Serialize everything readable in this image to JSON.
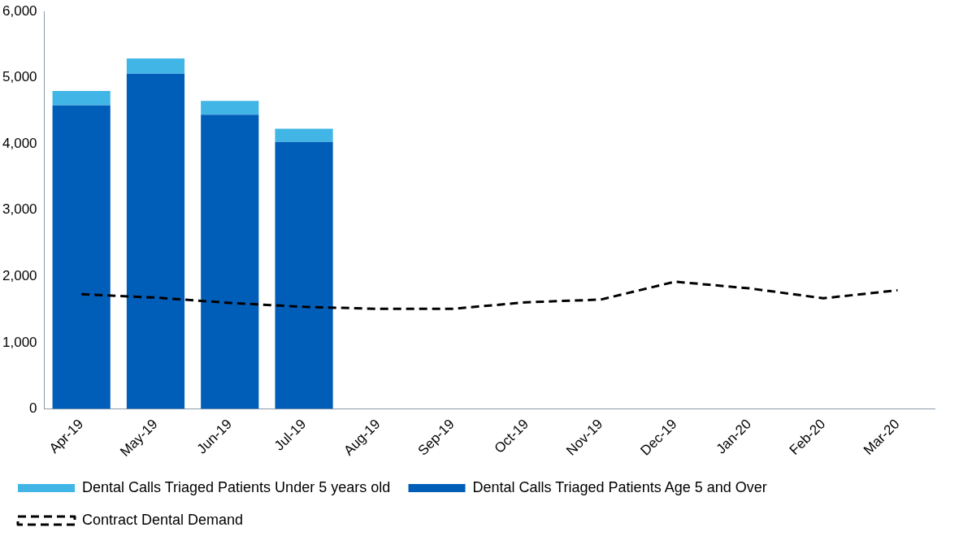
{
  "chart_data": {
    "type": "bar",
    "stacked": true,
    "grid": false,
    "legend": "bottom",
    "categories": [
      "Apr-19",
      "May-19",
      "Jun-19",
      "Jul-19",
      "Aug-19",
      "Sep-19",
      "Oct-19",
      "Nov-19",
      "Dec-19",
      "Jan-20",
      "Feb-20",
      "Mar-20"
    ],
    "ylim": [
      0,
      6000
    ],
    "yticks": [
      0,
      {
        "value": 1000,
        "label": "1,000"
      },
      {
        "value": 2000,
        "label": "2,000"
      },
      {
        "value": 3000,
        "label": "3,000"
      },
      {
        "value": 4000,
        "label": "4,000"
      },
      {
        "value": 5000,
        "label": "5,000"
      },
      {
        "value": 6000,
        "label": "6,000"
      }
    ],
    "series": [
      {
        "name": "Dental Calls Triaged Patients Age 5 and Over",
        "color": "#005eb8",
        "values": [
          4580,
          5060,
          4440,
          4030,
          null,
          null,
          null,
          null,
          null,
          null,
          null,
          null
        ]
      },
      {
        "name": "Dental Calls Triaged Patients Under 5 years old",
        "color": "#41b6e6",
        "values": [
          220,
          230,
          210,
          200,
          null,
          null,
          null,
          null,
          null,
          null,
          null,
          null
        ]
      },
      {
        "name": "Contract Dental Demand",
        "type": "line",
        "color": "#000000",
        "line_style": "dashed",
        "marker": "none",
        "values": [
          1730,
          1680,
          1600,
          1540,
          1510,
          1510,
          1610,
          1650,
          1920,
          1820,
          1670,
          1790
        ]
      }
    ]
  }
}
